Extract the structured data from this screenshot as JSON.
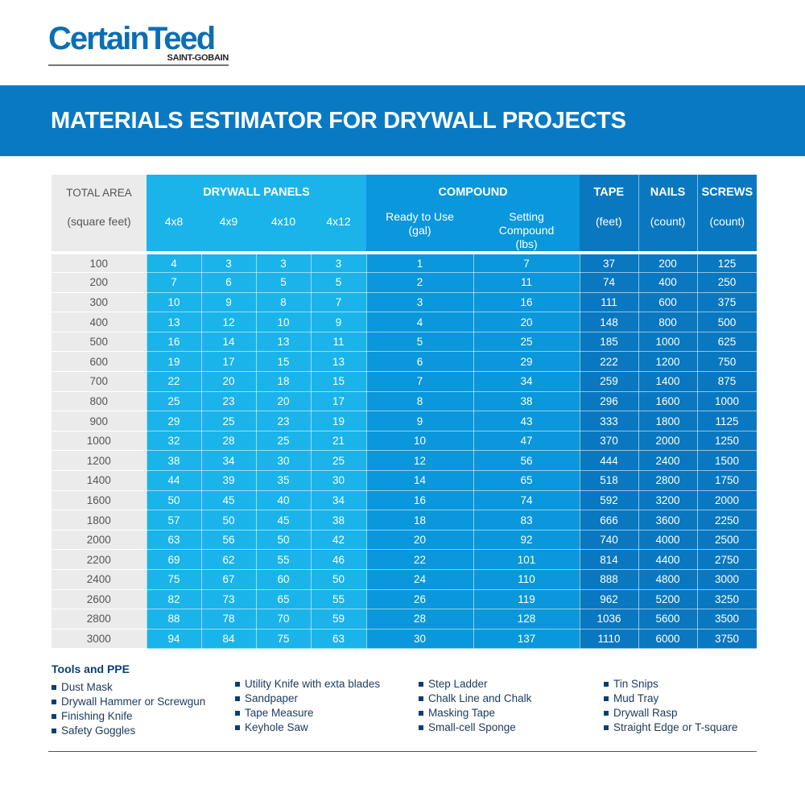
{
  "logo": {
    "brand": "CertainTeed",
    "sub": "SAINT-GOBAIN"
  },
  "title": "MATERIALS ESTIMATOR FOR DRYWALL PROJECTS",
  "headers": {
    "total_area": "TOTAL AREA",
    "total_area_unit": "(square feet)",
    "drywall": "DRYWALL PANELS",
    "panel_sizes": [
      "4x8",
      "4x9",
      "4x10",
      "4x12"
    ],
    "compound": "COMPOUND",
    "ready": "Ready to Use (gal)",
    "setting": "Setting Compound (lbs)",
    "tape": "TAPE",
    "tape_unit": "(feet)",
    "nails": "NAILS",
    "nails_unit": "(count)",
    "screws": "SCREWS",
    "screws_unit": "(count)"
  },
  "rows": [
    [
      "100",
      "4",
      "3",
      "3",
      "3",
      "1",
      "7",
      "37",
      "200",
      "125"
    ],
    [
      "200",
      "7",
      "6",
      "5",
      "5",
      "2",
      "11",
      "74",
      "400",
      "250"
    ],
    [
      "300",
      "10",
      "9",
      "8",
      "7",
      "3",
      "16",
      "111",
      "600",
      "375"
    ],
    [
      "400",
      "13",
      "12",
      "10",
      "9",
      "4",
      "20",
      "148",
      "800",
      "500"
    ],
    [
      "500",
      "16",
      "14",
      "13",
      "11",
      "5",
      "25",
      "185",
      "1000",
      "625"
    ],
    [
      "600",
      "19",
      "17",
      "15",
      "13",
      "6",
      "29",
      "222",
      "1200",
      "750"
    ],
    [
      "700",
      "22",
      "20",
      "18",
      "15",
      "7",
      "34",
      "259",
      "1400",
      "875"
    ],
    [
      "800",
      "25",
      "23",
      "20",
      "17",
      "8",
      "38",
      "296",
      "1600",
      "1000"
    ],
    [
      "900",
      "29",
      "25",
      "23",
      "19",
      "9",
      "43",
      "333",
      "1800",
      "1125"
    ],
    [
      "1000",
      "32",
      "28",
      "25",
      "21",
      "10",
      "47",
      "370",
      "2000",
      "1250"
    ],
    [
      "1200",
      "38",
      "34",
      "30",
      "25",
      "12",
      "56",
      "444",
      "2400",
      "1500"
    ],
    [
      "1400",
      "44",
      "39",
      "35",
      "30",
      "14",
      "65",
      "518",
      "2800",
      "1750"
    ],
    [
      "1600",
      "50",
      "45",
      "40",
      "34",
      "16",
      "74",
      "592",
      "3200",
      "2000"
    ],
    [
      "1800",
      "57",
      "50",
      "45",
      "38",
      "18",
      "83",
      "666",
      "3600",
      "2250"
    ],
    [
      "2000",
      "63",
      "56",
      "50",
      "42",
      "20",
      "92",
      "740",
      "4000",
      "2500"
    ],
    [
      "2200",
      "69",
      "62",
      "55",
      "46",
      "22",
      "101",
      "814",
      "4400",
      "2750"
    ],
    [
      "2400",
      "75",
      "67",
      "60",
      "50",
      "24",
      "110",
      "888",
      "4800",
      "3000"
    ],
    [
      "2600",
      "82",
      "73",
      "65",
      "55",
      "26",
      "119",
      "962",
      "5200",
      "3250"
    ],
    [
      "2800",
      "88",
      "78",
      "70",
      "59",
      "28",
      "128",
      "1036",
      "5600",
      "3500"
    ],
    [
      "3000",
      "94",
      "84",
      "75",
      "63",
      "30",
      "137",
      "1110",
      "6000",
      "3750"
    ]
  ],
  "tools": {
    "title": "Tools and PPE",
    "columns": [
      [
        "Dust Mask",
        "Drywall Hammer or Screwgun",
        "Finishing Knife",
        "Safety Goggles"
      ],
      [
        "Utility Knife with exta blades",
        "Sandpaper",
        "Tape Measure",
        "Keyhole Saw"
      ],
      [
        "Step Ladder",
        "Chalk Line and Chalk",
        "Masking Tape",
        "Small-cell Sponge"
      ],
      [
        "Tin Snips",
        "Mud Tray",
        "Drywall Rasp",
        "Straight Edge or T-square"
      ]
    ]
  },
  "colors": {
    "brand": "#0a6fb4",
    "banner": "#0a79c4",
    "panels": "#1ab4ea",
    "compound": "#0a97db",
    "tape_nails_screws": "#0a78c0",
    "area": "#ebebeb"
  }
}
